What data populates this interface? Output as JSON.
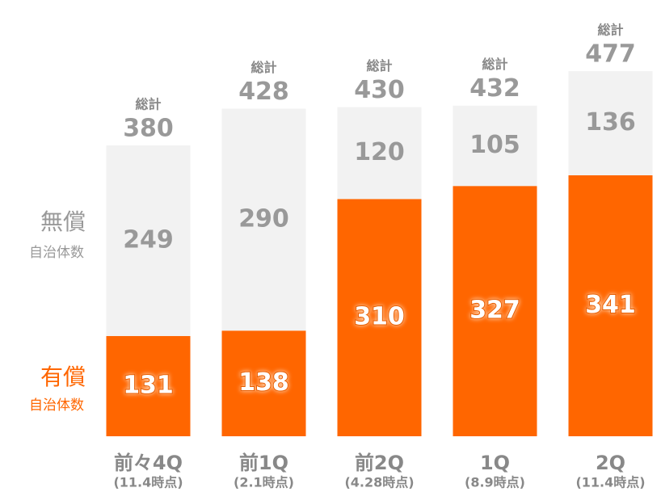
{
  "chart_data": {
    "type": "stacked-bar",
    "categories": [
      "前々4Q",
      "前1Q",
      "前2Q",
      "1Q",
      "2Q"
    ],
    "category_notes": [
      "(11.4時点)",
      "(2.1時点)",
      "(4.28時点)",
      "(8.9時点)",
      "(11.4時点)"
    ],
    "series": [
      {
        "name": "有償",
        "name_sub": "自治体数",
        "color": "#ff6600",
        "values": [
          131,
          138,
          310,
          327,
          341
        ]
      },
      {
        "name": "無償",
        "name_sub": "自治体数",
        "color": "#f2f2f2",
        "values": [
          249,
          290,
          120,
          105,
          136
        ]
      }
    ],
    "total_label": "総計",
    "totals": [
      380,
      428,
      430,
      432,
      477
    ],
    "ylim": [
      0,
      570
    ]
  }
}
